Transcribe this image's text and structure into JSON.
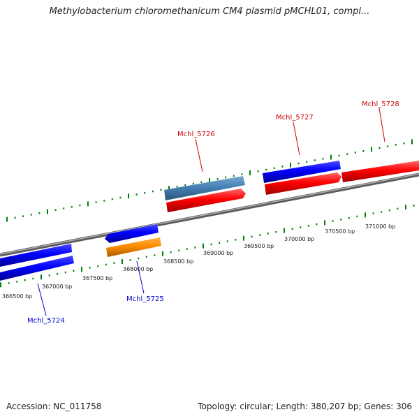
{
  "title": "Methylobacterium chloromethanicum CM4 plasmid pMCHL01, compl...",
  "footer": {
    "accession": "Accession: NC_011758",
    "summary": "Topology: circular; Length: 380,207 bp; Genes: 306"
  },
  "colors": {
    "forward_gene": "#ff0000",
    "reverse_gene": "#0000ff",
    "rna_gene": "#4682b4",
    "other_gene": "#ff8c00",
    "backbone": "#808080",
    "tick": "#008000",
    "label_forward": "#cc0000",
    "label_reverse": "#0000cc"
  },
  "axis": {
    "unit": "bp",
    "tick_labels": [
      "366500 bp",
      "367000 bp",
      "367500 bp",
      "368000 bp",
      "368500 bp",
      "369000 bp",
      "369500 bp",
      "370000 bp",
      "370500 bp",
      "371000 bp"
    ]
  },
  "genes": [
    {
      "label": "Mchl_5724",
      "strand": "reverse",
      "color": "reverse_gene"
    },
    {
      "label": "Mchl_5725",
      "strand": "reverse",
      "color": "reverse_gene"
    },
    {
      "label": "Mchl_5726",
      "strand": "forward",
      "color": "forward_gene"
    },
    {
      "label": "Mchl_5727",
      "strand": "forward",
      "color": "forward_gene"
    },
    {
      "label": "Mchl_5728",
      "strand": "forward",
      "color": "forward_gene"
    }
  ]
}
